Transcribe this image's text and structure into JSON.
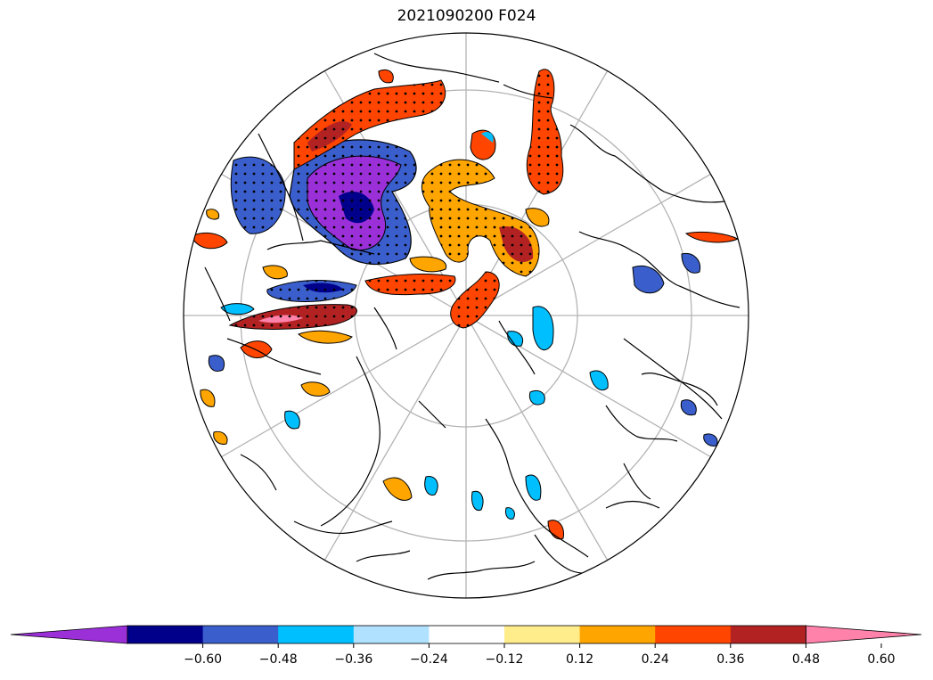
{
  "title": "2021090200 F024",
  "map": {
    "projection": "north-polar-stereographic",
    "boundary": "circle",
    "graticule_color": "#b4b4b4",
    "coastline_color": "#000000",
    "stipple": "significant-points"
  },
  "colorbar": {
    "extend": "both",
    "colors": [
      "#9b30d9",
      "#00008b",
      "#3a5fcd",
      "#00bfff",
      "#b0e2ff",
      "#ffffff",
      "#ffec8b",
      "#ffa500",
      "#ff4500",
      "#b22222",
      "#ff82ab"
    ],
    "ticks": [
      "−0.60",
      "−0.48",
      "−0.36",
      "−0.24",
      "−0.12",
      "0.12",
      "0.24",
      "0.36",
      "0.48",
      "0.60"
    ]
  }
}
